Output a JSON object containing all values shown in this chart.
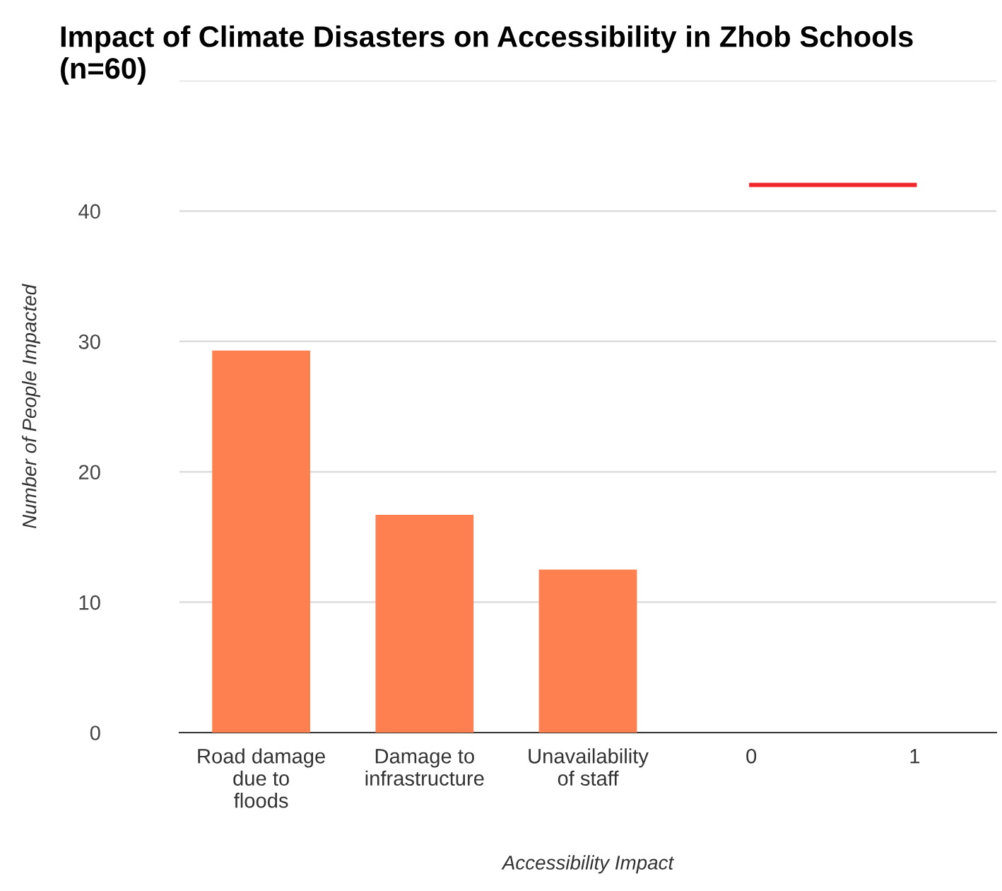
{
  "chart_data": {
    "type": "bar",
    "title": "Impact of Climate Disasters on Accessibility in Zhob Schools (n=60)",
    "xlabel": "Accessibility Impact",
    "ylabel": "Number of People Impacted",
    "categories": [
      "Road damage due to floods",
      "Damage to infrastructure",
      "Unavailability of staff",
      "0",
      "1"
    ],
    "series": [
      {
        "color": "#fe7f4f",
        "values": [
          29.3,
          16.7,
          12.5,
          null,
          null
        ]
      },
      {
        "type": "line",
        "color": "#f0262a",
        "values": [
          null,
          null,
          null,
          42,
          42
        ]
      }
    ],
    "ylim": [
      0,
      50
    ],
    "yticks": [
      0,
      10,
      20,
      30,
      40,
      {
        "value": 50,
        "label": null
      }
    ],
    "grid": "y"
  }
}
